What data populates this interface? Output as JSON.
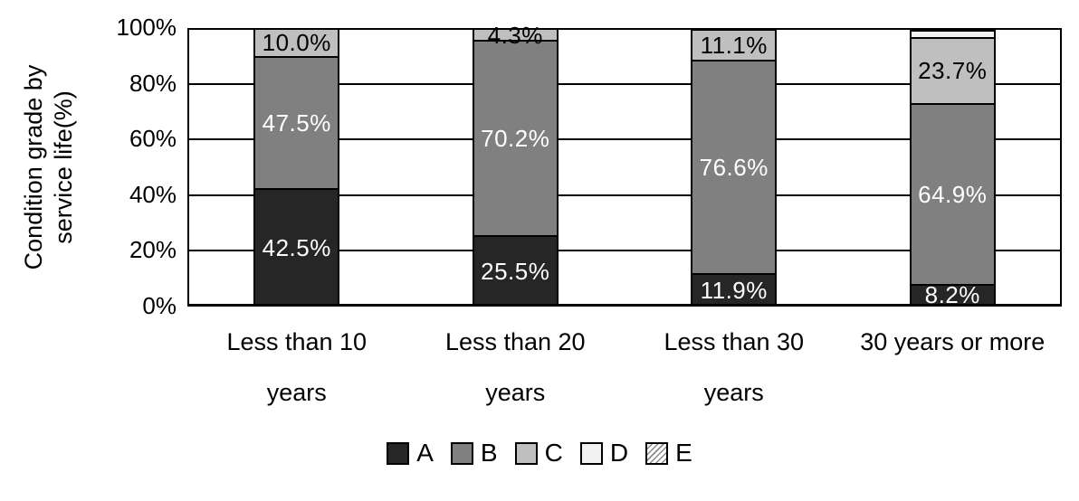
{
  "figure": {
    "background": "#ffffff",
    "frame_color": "#000000",
    "y_axis": {
      "title_line1": "Condition grade by",
      "title_line2": "service life(%)",
      "ticks": [
        "0%",
        "20%",
        "40%",
        "60%",
        "80%",
        "100%"
      ]
    },
    "legend": {
      "items": [
        {
          "label": "A",
          "color": "#262626",
          "pattern": "solid"
        },
        {
          "label": "B",
          "color": "#808080",
          "pattern": "solid"
        },
        {
          "label": "C",
          "color": "#bfbfbf",
          "pattern": "solid"
        },
        {
          "label": "D",
          "color": "#f2f2f2",
          "pattern": "solid"
        },
        {
          "label": "E",
          "color": "#ffffff",
          "pattern": "diagonal-hatch"
        }
      ]
    }
  },
  "chart_data": {
    "type": "bar",
    "stacked": true,
    "percent_stacked": true,
    "title": "",
    "ylabel": "Condition grade by service life(%)",
    "xlabel": "",
    "ylim": [
      0,
      100
    ],
    "ytick_step": 20,
    "grid": "horizontal",
    "legend_position": "bottom",
    "categories": [
      "Less than 10 years",
      "Less than 20 years",
      "Less than 30 years",
      "30 years or more"
    ],
    "category_label_lines": [
      [
        "Less than 10",
        "years"
      ],
      [
        "Less than 20",
        "years"
      ],
      [
        "Less than 30",
        "years"
      ],
      [
        "30 years or more"
      ]
    ],
    "series": [
      {
        "name": "A",
        "color": "#262626",
        "label_color": "#ffffff",
        "values": [
          42.5,
          25.5,
          11.9,
          8.2
        ],
        "labels": [
          "42.5%",
          "25.5%",
          "11.9%",
          "8.2%"
        ]
      },
      {
        "name": "B",
        "color": "#808080",
        "label_color": "#ffffff",
        "values": [
          47.5,
          70.2,
          76.6,
          64.9
        ],
        "labels": [
          "47.5%",
          "70.2%",
          "76.6%",
          "64.9%"
        ]
      },
      {
        "name": "C",
        "color": "#bfbfbf",
        "label_color": "#000000",
        "values": [
          10.0,
          4.3,
          11.1,
          23.7
        ],
        "labels": [
          "10.0%",
          "4.3%",
          "11.1%",
          "23.7%"
        ]
      },
      {
        "name": "D",
        "color": "#f2f2f2",
        "label_color": "#000000",
        "values": [
          0,
          0,
          0,
          2.7
        ],
        "labels": [
          "",
          "",
          "",
          ""
        ],
        "note": "unlabeled thin segment, value estimated from pixels"
      },
      {
        "name": "E",
        "color": "#ffffff",
        "pattern": "diagonal-hatch",
        "label_color": "#000000",
        "values": [
          0,
          0,
          0,
          0
        ],
        "labels": [
          "",
          "",
          "",
          ""
        ]
      }
    ]
  }
}
